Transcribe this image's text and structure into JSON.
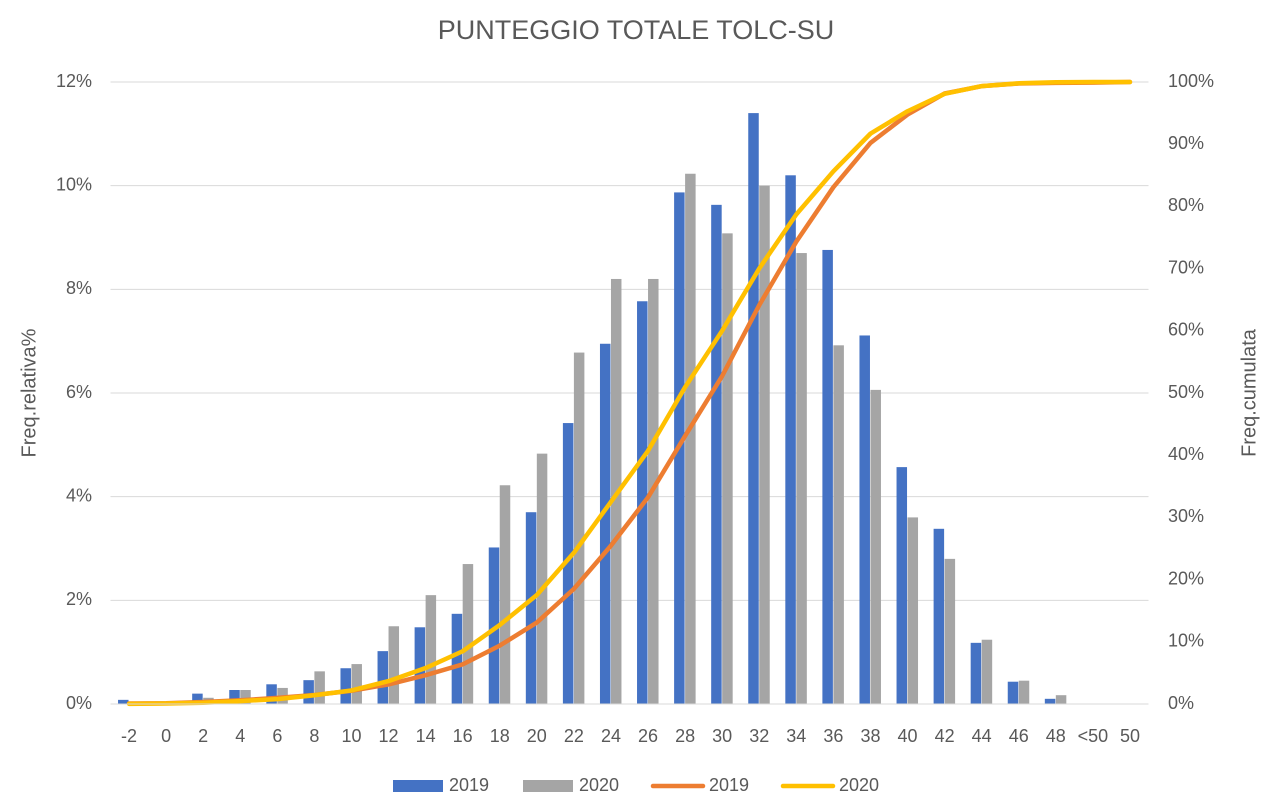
{
  "chart_data": {
    "type": "bar_line",
    "title": "PUNTEGGIO TOTALE TOLC-SU",
    "y_label": "Freq.relativa%",
    "y2_label": "Freq.cumulata",
    "categories": [
      "-2",
      "0",
      "2",
      "4",
      "6",
      "8",
      "10",
      "12",
      "14",
      "16",
      "18",
      "20",
      "22",
      "24",
      "26",
      "28",
      "30",
      "32",
      "34",
      "36",
      "38",
      "40",
      "42",
      "44",
      "46",
      "48",
      "<50",
      "50"
    ],
    "series": [
      {
        "name": "2019",
        "type": "bar",
        "color": "#4472c4",
        "values": [
          0.08,
          0.05,
          0.2,
          0.27,
          0.38,
          0.46,
          0.69,
          1.02,
          1.48,
          1.74,
          3.02,
          3.7,
          5.42,
          6.95,
          7.77,
          9.87,
          9.63,
          11.4,
          10.2,
          8.76,
          7.11,
          4.57,
          3.38,
          1.18,
          0.43,
          0.1,
          0,
          0
        ]
      },
      {
        "name": "2020",
        "type": "bar",
        "color": "#a5a5a5",
        "values": [
          0.03,
          0.05,
          0.12,
          0.27,
          0.31,
          0.63,
          0.77,
          1.5,
          2.1,
          2.7,
          4.22,
          4.83,
          6.78,
          8.2,
          8.2,
          10.23,
          9.08,
          10.0,
          8.7,
          6.92,
          6.06,
          3.6,
          2.8,
          1.24,
          0.45,
          0.17,
          0,
          0
        ]
      },
      {
        "name": "2019",
        "type": "line",
        "axis": "y2",
        "color": "#ed7d31",
        "values": [
          0.08,
          0.13,
          0.33,
          0.6,
          0.98,
          1.44,
          2.13,
          3.15,
          4.63,
          6.37,
          9.39,
          13.09,
          18.51,
          25.46,
          33.23,
          43.1,
          52.73,
          64.13,
          74.33,
          83.09,
          90.2,
          94.77,
          98.15,
          99.33,
          99.76,
          99.86,
          99.9,
          100
        ]
      },
      {
        "name": "2020",
        "type": "line",
        "axis": "y2",
        "color": "#ffc000",
        "values": [
          0.03,
          0.08,
          0.2,
          0.47,
          0.78,
          1.41,
          2.18,
          3.68,
          5.78,
          8.48,
          12.7,
          17.53,
          24.31,
          32.51,
          40.71,
          50.94,
          60.02,
          70.02,
          78.72,
          85.64,
          91.7,
          95.3,
          98.1,
          99.34,
          99.79,
          99.96,
          100,
          100
        ]
      }
    ],
    "ylim": [
      0,
      12
    ],
    "yticks": [
      {
        "value": 0,
        "label": "0%"
      },
      {
        "value": 2,
        "label": "2%"
      },
      {
        "value": 4,
        "label": "4%"
      },
      {
        "value": 6,
        "label": "6%"
      },
      {
        "value": 8,
        "label": "8%"
      },
      {
        "value": 10,
        "label": "10%"
      },
      {
        "value": 12,
        "label": "12%"
      }
    ],
    "y2lim": [
      0,
      100
    ],
    "y2ticks": [
      {
        "value": 0,
        "label": "0%"
      },
      {
        "value": 10,
        "label": "10%"
      },
      {
        "value": 20,
        "label": "20%"
      },
      {
        "value": 30,
        "label": "30%"
      },
      {
        "value": 40,
        "label": "40%"
      },
      {
        "value": 50,
        "label": "50%"
      },
      {
        "value": 60,
        "label": "60%"
      },
      {
        "value": 70,
        "label": "70%"
      },
      {
        "value": 80,
        "label": "80%"
      },
      {
        "value": 90,
        "label": "90%"
      },
      {
        "value": 100,
        "label": "100%"
      }
    ],
    "grid": true,
    "legend": "bottom"
  }
}
